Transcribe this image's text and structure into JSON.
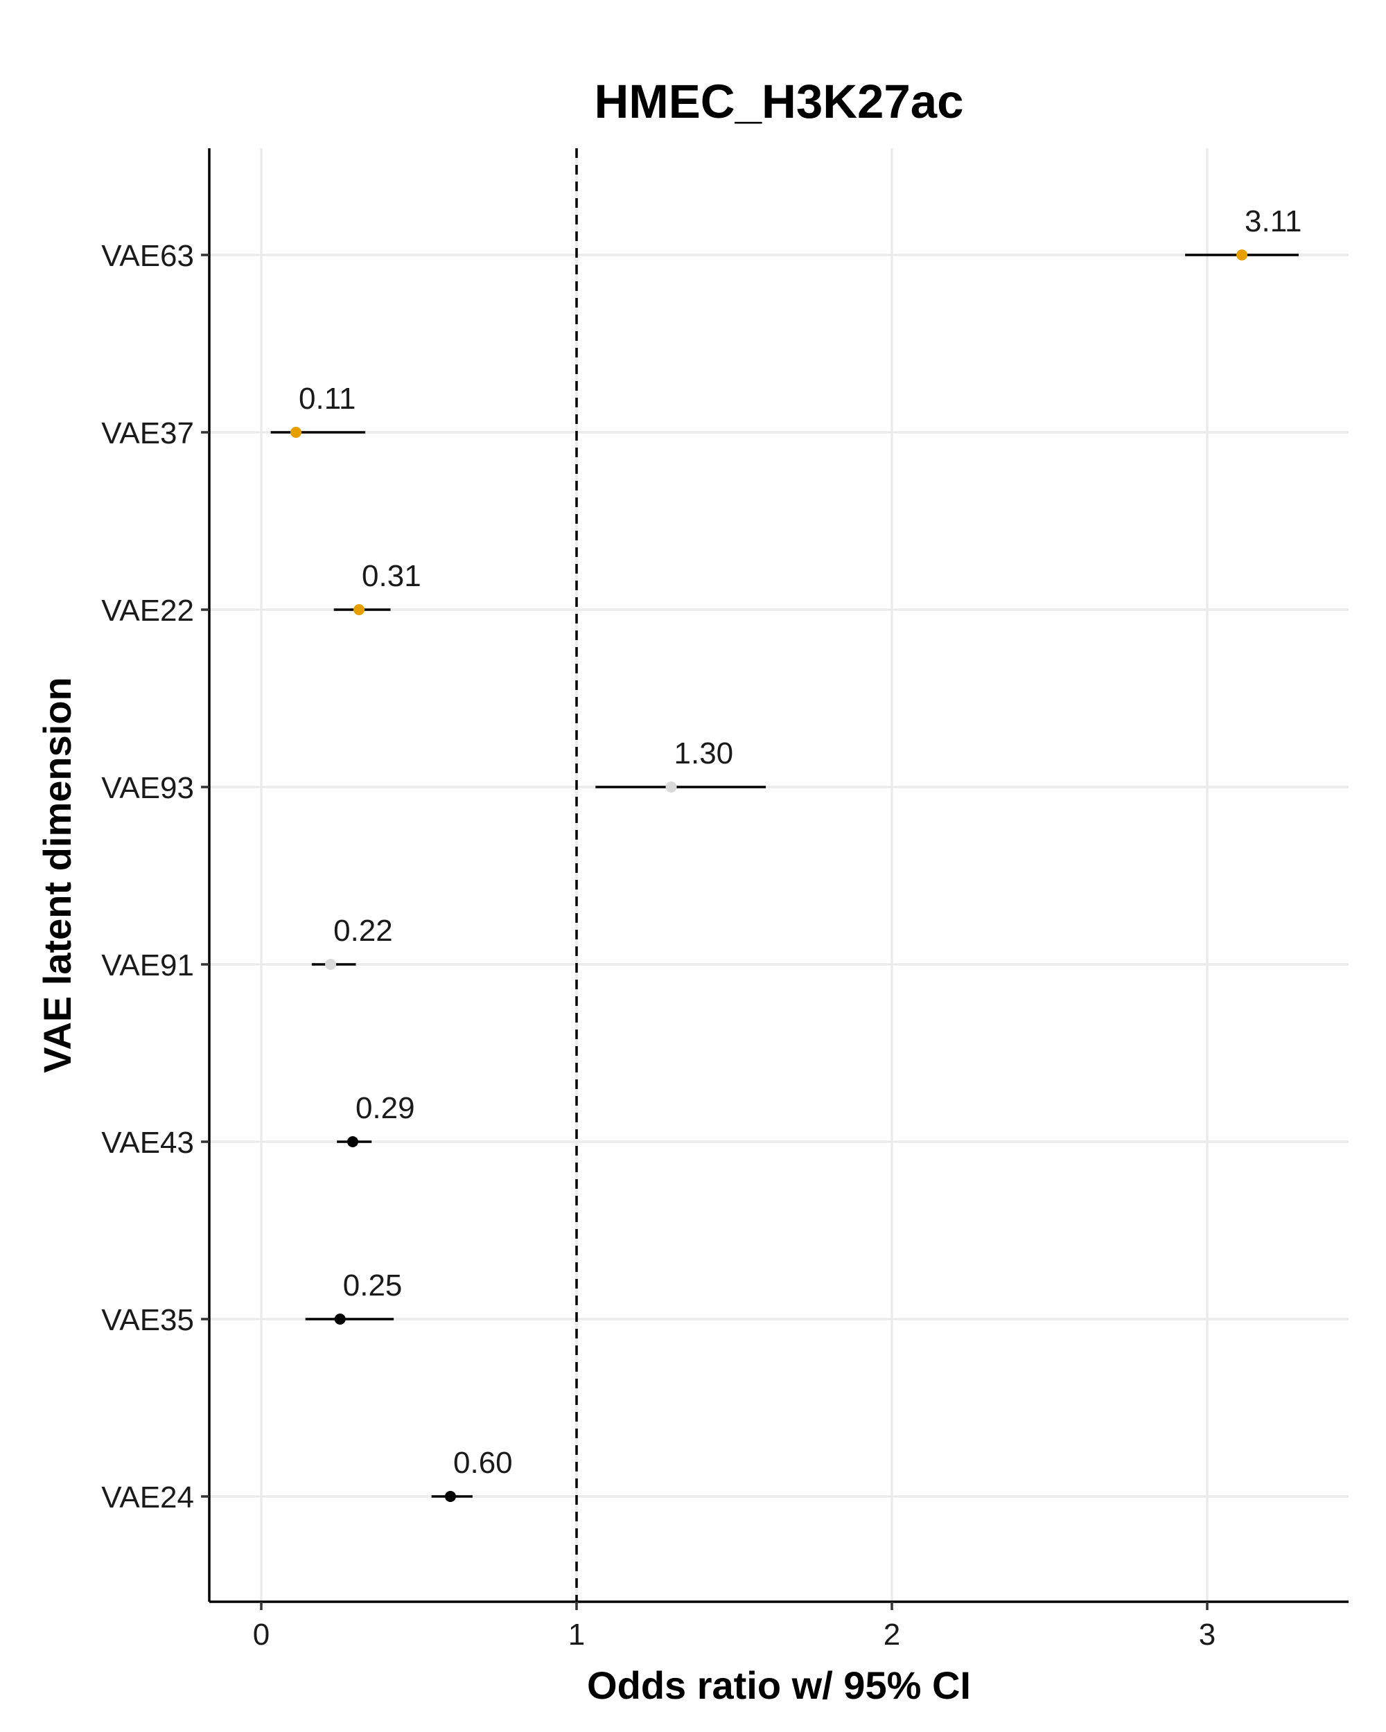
{
  "chart_data": {
    "type": "scatter",
    "subtype": "forest-plot",
    "title": "HMEC_H3K27ac",
    "xlabel": "Odds ratio w/ 95% CI",
    "ylabel": "VAE latent dimension",
    "xlim": [
      -0.16,
      3.44
    ],
    "xticks": [
      0,
      1,
      2,
      3
    ],
    "reference_line": {
      "x": 1,
      "style": "dashed"
    },
    "grid": true,
    "legend": "none",
    "rows": [
      {
        "label": "VAE63",
        "estimate": 3.11,
        "lower": 2.93,
        "upper": 3.29,
        "text": "3.11",
        "point_color": "#E69F00"
      },
      {
        "label": "VAE37",
        "estimate": 0.11,
        "lower": 0.03,
        "upper": 0.33,
        "text": "0.11",
        "point_color": "#E69F00"
      },
      {
        "label": "VAE22",
        "estimate": 0.31,
        "lower": 0.23,
        "upper": 0.41,
        "text": "0.31",
        "point_color": "#E69F00"
      },
      {
        "label": "VAE93",
        "estimate": 1.3,
        "lower": 1.06,
        "upper": 1.6,
        "text": "1.30",
        "point_color": "#D9D9D9"
      },
      {
        "label": "VAE91",
        "estimate": 0.22,
        "lower": 0.16,
        "upper": 0.3,
        "text": "0.22",
        "point_color": "#D9D9D9"
      },
      {
        "label": "VAE43",
        "estimate": 0.29,
        "lower": 0.24,
        "upper": 0.35,
        "text": "0.29",
        "point_color": "#000000"
      },
      {
        "label": "VAE35",
        "estimate": 0.25,
        "lower": 0.14,
        "upper": 0.42,
        "text": "0.25",
        "point_color": "#000000"
      },
      {
        "label": "VAE24",
        "estimate": 0.6,
        "lower": 0.54,
        "upper": 0.67,
        "text": "0.60",
        "point_color": "#000000"
      }
    ]
  }
}
